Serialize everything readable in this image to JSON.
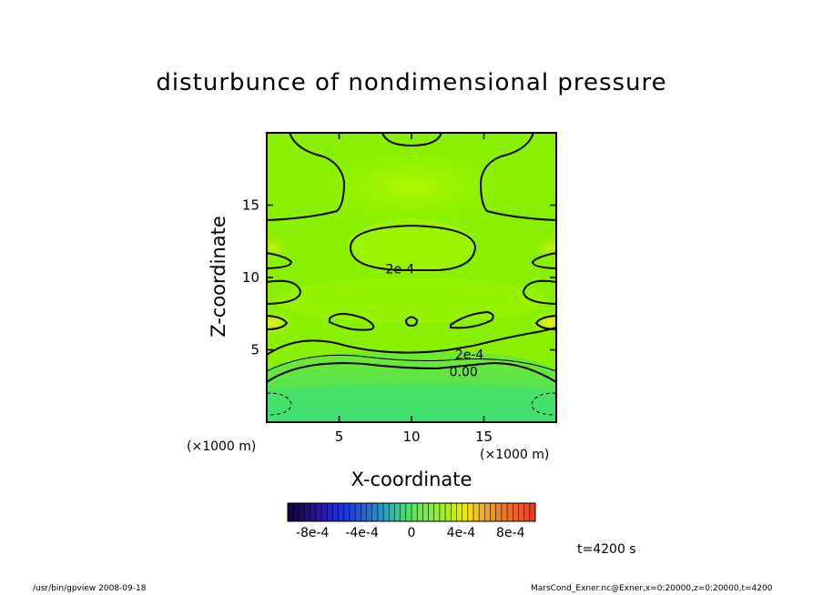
{
  "chart_data": {
    "type": "contour",
    "title": "disturbunce of nondimensional pressure",
    "xlabel": "X-coordinate",
    "ylabel": "Z-coordinate",
    "x_unit_note": "(×1000 m)",
    "z_unit_note": "(×1000 m)",
    "xlim": [
      0,
      20
    ],
    "ylim": [
      0,
      20
    ],
    "xticks": [
      5,
      10,
      15
    ],
    "yticks": [
      5,
      10,
      15
    ],
    "contour_labels": [
      {
        "text": "2e-4",
        "x": 9.2,
        "z": 10.6
      },
      {
        "text": "2e-4",
        "x": 14.0,
        "z": 4.7
      },
      {
        "text": "0.00",
        "x": 13.6,
        "z": 3.5
      }
    ],
    "colorbar": {
      "min": -0.001,
      "max": 0.001,
      "tick_labels": [
        "-8e-4",
        "-4e-4",
        "0",
        "4e-4",
        "8e-4"
      ],
      "tick_values": [
        -0.0008,
        -0.0004,
        0,
        0.0004,
        0.0008
      ]
    },
    "time_label": "t=4200 s"
  },
  "footer": {
    "left": "/usr/bin/gpview   2008-09-18",
    "right": "MarsCond_Exner.nc@Exner,x=0:20000,z=0:20000,t=4200"
  },
  "colors": {
    "bg_green": "#88f000",
    "light_green": "#a8f800",
    "mid_green": "#60e830",
    "low_green": "#40e060",
    "yellow": "#e8f020"
  }
}
